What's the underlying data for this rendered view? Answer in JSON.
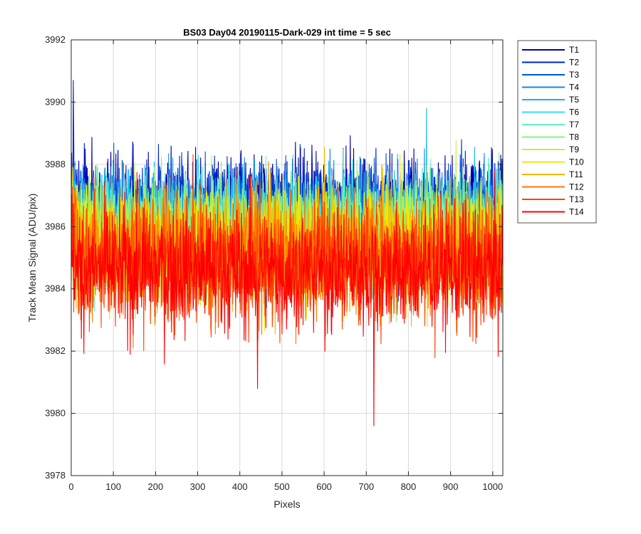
{
  "chart_data": {
    "type": "line",
    "title": "BS03 Day04 20190115-Dark-029 int time = 5 sec",
    "xlabel": "Pixels",
    "ylabel": "Track Mean Signal (ADU/pix)",
    "xlim": [
      0,
      1024
    ],
    "ylim": [
      3978,
      3992
    ],
    "xticks": [
      0,
      100,
      200,
      300,
      400,
      500,
      600,
      700,
      800,
      900,
      1000
    ],
    "yticks": [
      3978,
      3980,
      3982,
      3984,
      3986,
      3988,
      3990,
      3992
    ],
    "grid": true,
    "legend_position": "outside-top-right",
    "n_points": 1024,
    "series": [
      {
        "name": "T1",
        "color": "#0000AA",
        "mean": 3986.6,
        "noise": 0.85
      },
      {
        "name": "T2",
        "color": "#0022CC",
        "mean": 3986.5,
        "noise": 0.85
      },
      {
        "name": "T3",
        "color": "#0055DD",
        "mean": 3986.3,
        "noise": 0.85
      },
      {
        "name": "T4",
        "color": "#1188EE",
        "mean": 3986.2,
        "noise": 0.85
      },
      {
        "name": "T5",
        "color": "#11B5F0",
        "mean": 3986.1,
        "noise": 0.85
      },
      {
        "name": "T6",
        "color": "#33E0E8",
        "mean": 3986.0,
        "noise": 0.85
      },
      {
        "name": "T7",
        "color": "#66F0C0",
        "mean": 3985.9,
        "noise": 0.9
      },
      {
        "name": "T8",
        "color": "#88F088",
        "mean": 3985.8,
        "noise": 0.9
      },
      {
        "name": "T9",
        "color": "#C0F040",
        "mean": 3985.7,
        "noise": 0.9
      },
      {
        "name": "T10",
        "color": "#F0E800",
        "mean": 3985.5,
        "noise": 0.9
      },
      {
        "name": "T11",
        "color": "#F7B500",
        "mean": 3985.3,
        "noise": 0.95
      },
      {
        "name": "T12",
        "color": "#FF7A00",
        "mean": 3985.1,
        "noise": 0.95
      },
      {
        "name": "T13",
        "color": "#FF4000",
        "mean": 3984.9,
        "noise": 1.0
      },
      {
        "name": "T14",
        "color": "#FF0000",
        "mean": 3984.6,
        "noise": 1.0
      }
    ],
    "annotations": [
      {
        "series": "T2",
        "x": 5,
        "y": 3990.7
      },
      {
        "series": "T5",
        "x": 843,
        "y": 3989.8
      },
      {
        "series": "T14",
        "x": 718,
        "y": 3979.6
      },
      {
        "series": "T14",
        "x": 442,
        "y": 3980.8
      }
    ]
  }
}
